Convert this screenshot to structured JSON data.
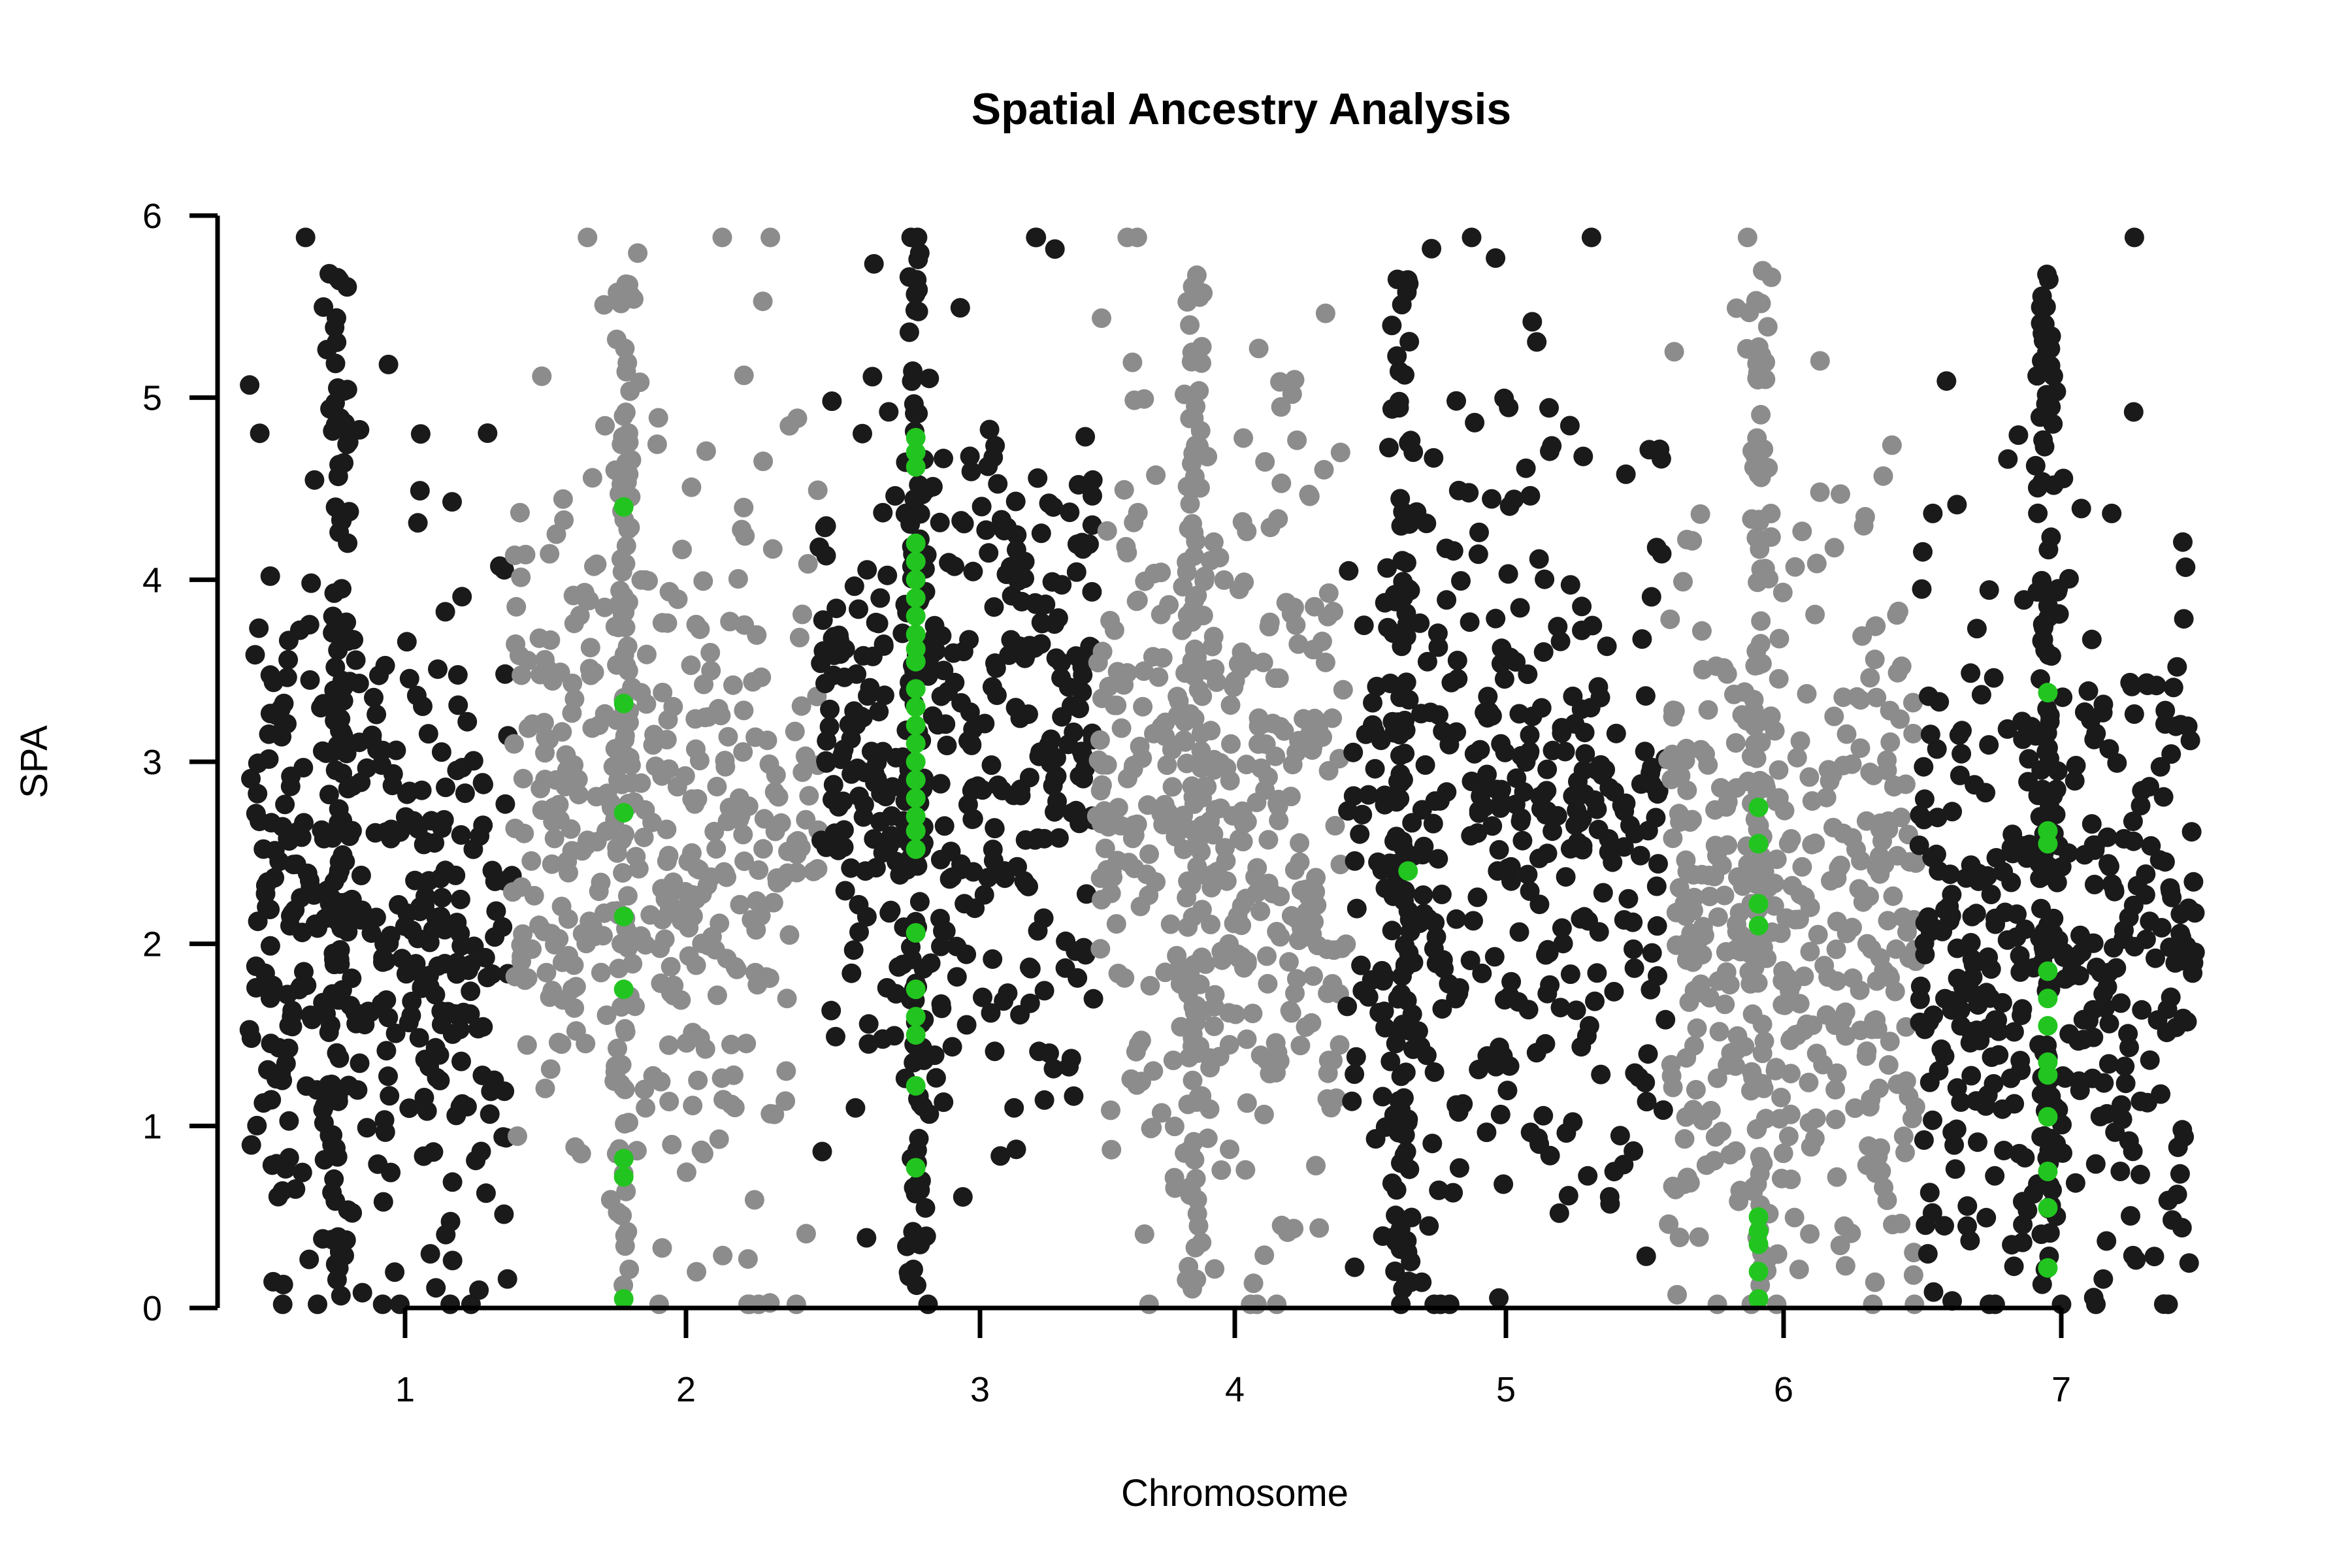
{
  "chart_data": {
    "type": "scatter",
    "title": "Spatial Ancestry Analysis",
    "xlabel": "Chromosome",
    "ylabel": "SPA",
    "xlim": [
      0.5,
      7.5
    ],
    "ylim": [
      0,
      6
    ],
    "x_ticks": [
      {
        "label": "1",
        "value": 1.0
      },
      {
        "label": "2",
        "value": 2.0
      },
      {
        "label": "3",
        "value": 3.0
      },
      {
        "label": "4",
        "value": 4.0
      },
      {
        "label": "5",
        "value": 5.0
      },
      {
        "label": "6",
        "value": 6.0
      },
      {
        "label": "7",
        "value": 7.0
      }
    ],
    "y_ticks": [
      0,
      1,
      2,
      3,
      4,
      5,
      6
    ],
    "grid": false,
    "legend": "none",
    "colors": {
      "dark_band": "#1a1a1a",
      "light_band": "#8c8c8c",
      "highlight": "#22c51f"
    },
    "chromosome_bands": [
      {
        "chromosome": "1",
        "color": "dark_band",
        "x_range": [
          0.5,
          1.45
        ],
        "dense_column": 0.83,
        "y_peak": 2.2
      },
      {
        "chromosome": "2",
        "color": "light_band",
        "x_range": [
          1.45,
          2.55
        ],
        "dense_column": 1.85,
        "y_peak": 2.5
      },
      {
        "chromosome": "3",
        "color": "dark_band",
        "x_range": [
          2.55,
          3.55
        ],
        "dense_column": 2.9,
        "y_peak": 3.0
      },
      {
        "chromosome": "4",
        "color": "light_band",
        "x_range": [
          3.55,
          4.45
        ],
        "dense_column": 3.9,
        "y_peak": 2.6
      },
      {
        "chromosome": "5",
        "color": "dark_band",
        "x_range": [
          4.45,
          5.6
        ],
        "dense_column": 4.65,
        "y_peak": 2.4
      },
      {
        "chromosome": "6",
        "color": "light_band",
        "x_range": [
          5.6,
          6.5
        ],
        "dense_column": 5.93,
        "y_peak": 2.0
      },
      {
        "chromosome": "7",
        "color": "dark_band",
        "x_range": [
          6.5,
          7.5
        ],
        "dense_column": 6.97,
        "y_peak": 2.0
      }
    ],
    "highlighted_points": [
      {
        "x": 1.85,
        "y": 4.4
      },
      {
        "x": 1.85,
        "y": 3.32
      },
      {
        "x": 1.85,
        "y": 2.72
      },
      {
        "x": 1.85,
        "y": 2.15
      },
      {
        "x": 1.85,
        "y": 1.75
      },
      {
        "x": 1.85,
        "y": 0.82
      },
      {
        "x": 1.85,
        "y": 0.72
      },
      {
        "x": 1.85,
        "y": 0.05
      },
      {
        "x": 2.9,
        "y": 4.78
      },
      {
        "x": 2.9,
        "y": 4.7
      },
      {
        "x": 2.9,
        "y": 4.62
      },
      {
        "x": 2.9,
        "y": 4.2
      },
      {
        "x": 2.9,
        "y": 4.1
      },
      {
        "x": 2.9,
        "y": 4.0
      },
      {
        "x": 2.9,
        "y": 3.9
      },
      {
        "x": 2.9,
        "y": 3.8
      },
      {
        "x": 2.9,
        "y": 3.7
      },
      {
        "x": 2.9,
        "y": 3.62
      },
      {
        "x": 2.9,
        "y": 3.55
      },
      {
        "x": 2.9,
        "y": 3.4
      },
      {
        "x": 2.9,
        "y": 3.3
      },
      {
        "x": 2.9,
        "y": 3.2
      },
      {
        "x": 2.9,
        "y": 3.1
      },
      {
        "x": 2.9,
        "y": 3.0
      },
      {
        "x": 2.9,
        "y": 2.9
      },
      {
        "x": 2.9,
        "y": 2.8
      },
      {
        "x": 2.9,
        "y": 2.7
      },
      {
        "x": 2.9,
        "y": 2.62
      },
      {
        "x": 2.9,
        "y": 2.52
      },
      {
        "x": 2.9,
        "y": 2.06
      },
      {
        "x": 2.9,
        "y": 1.75
      },
      {
        "x": 2.9,
        "y": 1.6
      },
      {
        "x": 2.9,
        "y": 1.5
      },
      {
        "x": 2.9,
        "y": 1.22
      },
      {
        "x": 2.9,
        "y": 0.77
      },
      {
        "x": 4.67,
        "y": 2.4
      },
      {
        "x": 5.93,
        "y": 2.75
      },
      {
        "x": 5.93,
        "y": 2.55
      },
      {
        "x": 5.93,
        "y": 2.22
      },
      {
        "x": 5.93,
        "y": 2.1
      },
      {
        "x": 5.93,
        "y": 0.5
      },
      {
        "x": 5.93,
        "y": 0.42
      },
      {
        "x": 5.93,
        "y": 0.35
      },
      {
        "x": 5.93,
        "y": 0.2
      },
      {
        "x": 5.93,
        "y": 0.05
      },
      {
        "x": 6.97,
        "y": 3.38
      },
      {
        "x": 6.97,
        "y": 2.62
      },
      {
        "x": 6.97,
        "y": 2.55
      },
      {
        "x": 6.97,
        "y": 1.85
      },
      {
        "x": 6.97,
        "y": 1.7
      },
      {
        "x": 6.97,
        "y": 1.55
      },
      {
        "x": 6.97,
        "y": 1.35
      },
      {
        "x": 6.97,
        "y": 1.28
      },
      {
        "x": 6.97,
        "y": 1.05
      },
      {
        "x": 6.97,
        "y": 0.75
      },
      {
        "x": 6.97,
        "y": 0.55
      },
      {
        "x": 6.97,
        "y": 0.22
      }
    ]
  }
}
